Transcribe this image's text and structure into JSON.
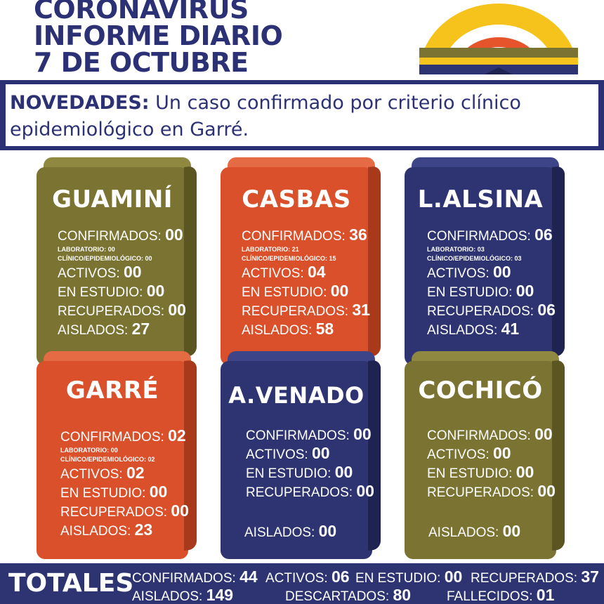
{
  "header": {
    "line1": "CORONAVIRUS",
    "line2": "INFORME DIARIO",
    "line3": "7 DE OCTUBRE"
  },
  "news": {
    "label": "NOVEDADES:",
    "text": " Un caso confirmado por criterio clínico epidemiológico en Garré."
  },
  "labels": {
    "confirmados": "CONFIRMADOS:",
    "laboratorio": "LABORATORIO:",
    "clinico": "CLÍNICO/EPIDEMIOLÓGICO:",
    "activos": "ACTIVOS:",
    "en_estudio": "EN ESTUDIO:",
    "recuperados": "RECUPERADOS:",
    "aislados": "AISLADOS:",
    "totales": "TOTALES",
    "descartados": "DESCARTADOS:",
    "fallecidos": "FALLECIDOS:"
  },
  "districts": [
    {
      "name": "GUAMINÍ",
      "confirmados": "00",
      "laboratorio": "00",
      "clinico": "00",
      "activos": "00",
      "en_estudio": "00",
      "recuperados": "00",
      "aislados": "27"
    },
    {
      "name": "CASBAS",
      "confirmados": "36",
      "laboratorio": "21",
      "clinico": "15",
      "activos": "04",
      "en_estudio": "00",
      "recuperados": "31",
      "aislados": "58"
    },
    {
      "name": "L.ALSINA",
      "confirmados": "06",
      "laboratorio": "03",
      "clinico": "03",
      "activos": "00",
      "en_estudio": "00",
      "recuperados": "06",
      "aislados": "41"
    },
    {
      "name": "GARRÉ",
      "confirmados": "02",
      "laboratorio": "00",
      "clinico": "02",
      "activos": "02",
      "en_estudio": "00",
      "recuperados": "00",
      "aislados": "23"
    },
    {
      "name": "A.VENADO",
      "confirmados": "00",
      "activos": "00",
      "en_estudio": "00",
      "recuperados": "00",
      "aislados": "00"
    },
    {
      "name": "COCHICÓ",
      "confirmados": "00",
      "activos": "00",
      "en_estudio": "00",
      "recuperados": "00",
      "aislados": "00"
    }
  ],
  "totals": {
    "confirmados": "44",
    "activos": "06",
    "en_estudio": "00",
    "recuperados": "37",
    "aislados": "149",
    "descartados": "80",
    "fallecidos": "01"
  },
  "colors": {
    "navy": "#2e3472",
    "olive": "#7a7331",
    "orange": "#d9502a"
  }
}
